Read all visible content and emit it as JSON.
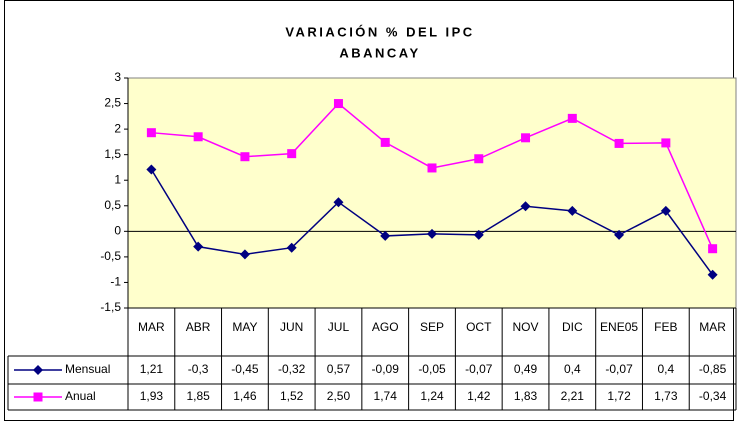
{
  "chart_data": {
    "type": "line",
    "title": "VARIACIÓN % DEL IPC",
    "subtitle": "ABANCAY",
    "categories": [
      "MAR",
      "ABR",
      "MAY",
      "JUN",
      "JUL",
      "AGO",
      "SEP",
      "OCT",
      "NOV",
      "DIC",
      "ENE05",
      "FEB",
      "MAR"
    ],
    "series": [
      {
        "name": "Mensual",
        "color": "#000080",
        "marker": "diamond",
        "values": [
          1.21,
          -0.3,
          -0.45,
          -0.32,
          0.57,
          -0.09,
          -0.05,
          -0.07,
          0.49,
          0.4,
          -0.07,
          0.4,
          -0.85
        ],
        "value_labels": [
          "1,21",
          "-0,3",
          "-0,45",
          "-0,32",
          "0,57",
          "-0,09",
          "-0,05",
          "-0,07",
          "0,49",
          "0,4",
          "-0,07",
          "0,4",
          "-0,85"
        ]
      },
      {
        "name": "Anual",
        "color": "#FF00FF",
        "marker": "square",
        "values": [
          1.93,
          1.85,
          1.46,
          1.52,
          2.5,
          1.74,
          1.24,
          1.42,
          1.83,
          2.21,
          1.72,
          1.73,
          -0.34
        ],
        "value_labels": [
          "1,93",
          "1,85",
          "1,46",
          "1,52",
          "2,50",
          "1,74",
          "1,24",
          "1,42",
          "1,83",
          "2,21",
          "1,72",
          "1,73",
          "-0,34"
        ]
      }
    ],
    "ylim": [
      -1.5,
      3
    ],
    "yticks": [
      -1.5,
      -1,
      -0.5,
      0,
      0.5,
      1,
      1.5,
      2,
      2.5,
      3
    ],
    "ytick_labels": [
      "-1,5",
      "-1",
      "-0,5",
      "0",
      "0,5",
      "1",
      "1,5",
      "2",
      "2,5",
      "3"
    ],
    "grid": false,
    "plot_background": "#FFFFCC"
  }
}
